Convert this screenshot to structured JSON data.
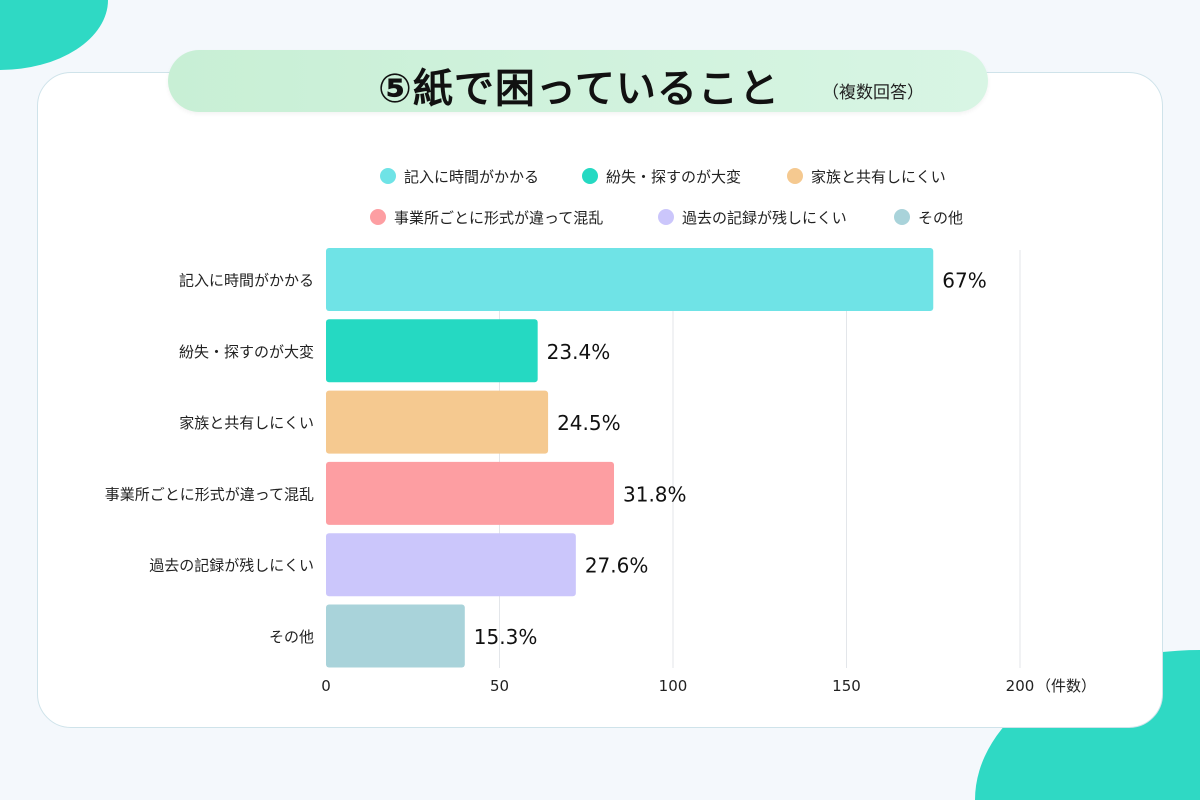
{
  "title": "⑤紙で困っていること",
  "subtitle": "（複数回答）",
  "chart_data": {
    "type": "bar",
    "orientation": "horizontal",
    "categories": [
      "記入に時間がかかる",
      "紛失・探すのが大変",
      "家族と共有しにくい",
      "事業所ごとに形式が違って混乱",
      "過去の記録が残しにくい",
      "その他"
    ],
    "values": [
      175,
      61,
      64,
      83,
      72,
      40
    ],
    "data_labels": [
      "67%",
      "23.4%",
      "24.5%",
      "31.8%",
      "27.6%",
      "15.3%"
    ],
    "colors": [
      "#6fe3e6",
      "#25d9c2",
      "#f5c990",
      "#fd9ea2",
      "#cbc6fb",
      "#a9d3da"
    ],
    "xlim": [
      0,
      200
    ],
    "xticks": [
      "0",
      "50",
      "100",
      "150",
      "200"
    ],
    "xlabel": "（件数）",
    "grid": true,
    "legend": {
      "position": "top",
      "entries": [
        "記入に時間がかかる",
        "紛失・探すのが大変",
        "家族と共有しにくい",
        "事業所ごとに形式が違って混乱",
        "過去の記録が残しにくい",
        "その他"
      ]
    }
  }
}
